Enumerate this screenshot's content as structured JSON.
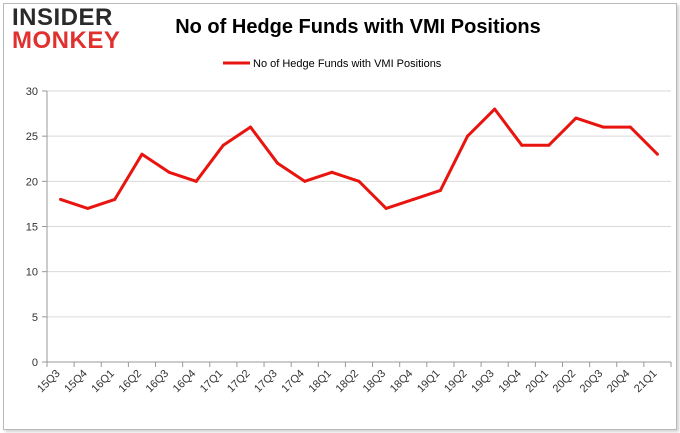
{
  "logo": {
    "line1": "INSIDER",
    "line2": "MONKEY"
  },
  "chart_data": {
    "type": "line",
    "title": "No of Hedge Funds with VMI Positions",
    "xlabel": "",
    "ylabel": "",
    "categories": [
      "15Q3",
      "15Q4",
      "16Q1",
      "16Q2",
      "16Q3",
      "16Q4",
      "17Q1",
      "17Q2",
      "17Q3",
      "17Q4",
      "18Q1",
      "18Q2",
      "18Q3",
      "18Q4",
      "19Q1",
      "19Q2",
      "19Q3",
      "19Q4",
      "20Q1",
      "20Q2",
      "20Q3",
      "20Q4",
      "21Q1"
    ],
    "series": [
      {
        "name": "No of Hedge Funds with VMI Positions",
        "color": "#e8140f",
        "values": [
          18,
          17,
          18,
          23,
          21,
          20,
          24,
          26,
          22,
          20,
          21,
          20,
          17,
          18,
          19,
          25,
          28,
          24,
          24,
          27,
          26,
          26,
          23
        ]
      }
    ],
    "ylim": [
      0,
      30
    ],
    "yticks": [
      0,
      5,
      10,
      15,
      20,
      25,
      30
    ],
    "grid": true,
    "legend": "top-center"
  }
}
